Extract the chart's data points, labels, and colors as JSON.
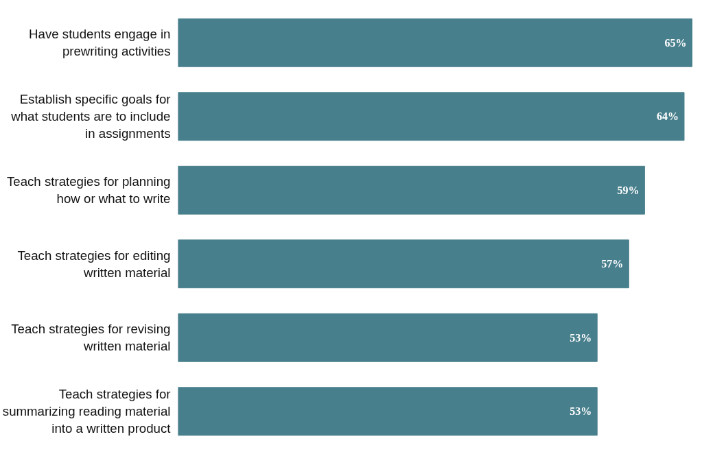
{
  "chart_data": {
    "type": "bar",
    "orientation": "horizontal",
    "categories": [
      "Have students engage in prewriting activities",
      "Establish specific goals for what students are to include in assignments",
      "Teach strategies for planning how or what to write",
      "Teach strategies for editing written material",
      "Teach strategies for revising written material",
      "Teach strategies for summarizing reading material into a written product"
    ],
    "values": [
      65,
      64,
      59,
      57,
      53,
      53
    ],
    "value_labels": [
      "65%",
      "64%",
      "59%",
      "57%",
      "53%",
      "53%"
    ],
    "color": "#487f8c",
    "tick_labels": "y",
    "grid": false
  }
}
